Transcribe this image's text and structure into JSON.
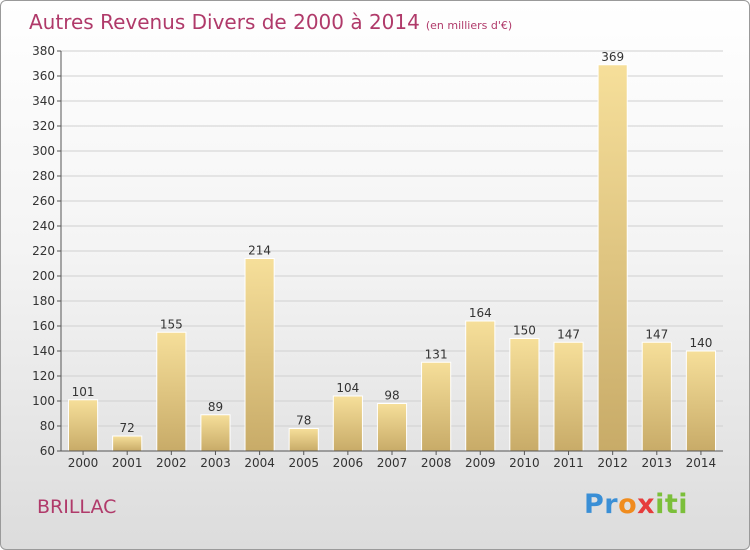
{
  "title": "Autres Revenus Divers de 2000 à 2014",
  "subtitle": "(en milliers d'€)",
  "place": "BRILLAC",
  "logo": {
    "text": "Proxiti",
    "parts": [
      "Pr",
      "o",
      "x",
      "iti"
    ]
  },
  "colors": {
    "title": "#b03a6a",
    "bar_light": "#f6df9a",
    "bar_dark": "#c8ab68",
    "grid": "#d0d0d0"
  },
  "chart_data": {
    "type": "bar",
    "title": "Autres Revenus Divers de 2000 à 2014",
    "subtitle": "(en milliers d'€)",
    "categories": [
      "2000",
      "2001",
      "2002",
      "2003",
      "2004",
      "2005",
      "2006",
      "2007",
      "2008",
      "2009",
      "2010",
      "2011",
      "2012",
      "2013",
      "2014"
    ],
    "values": [
      101,
      72,
      155,
      89,
      214,
      78,
      104,
      98,
      131,
      164,
      150,
      147,
      369,
      147,
      140
    ],
    "ylim": [
      60,
      380
    ],
    "yticks": [
      60,
      80,
      100,
      120,
      140,
      160,
      180,
      200,
      220,
      240,
      260,
      280,
      300,
      320,
      340,
      360,
      380
    ],
    "grid": true,
    "data_labels": true
  }
}
